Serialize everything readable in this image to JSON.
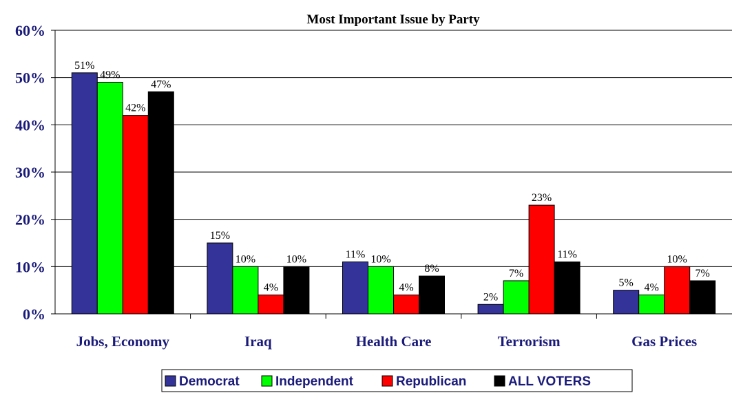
{
  "chart_data": {
    "type": "bar",
    "title": "Most Important Issue by Party",
    "xlabel": "",
    "ylabel": "",
    "categories": [
      "Jobs, Economy",
      "Iraq",
      "Health Care",
      "Terrorism",
      "Gas Prices"
    ],
    "series": [
      {
        "name": "Democrat",
        "color": "#333399",
        "values": [
          51,
          15,
          11,
          2,
          5
        ]
      },
      {
        "name": "Independent",
        "color": "#00ff00",
        "values": [
          49,
          10,
          10,
          7,
          4
        ]
      },
      {
        "name": "Republican",
        "color": "#ff0000",
        "values": [
          42,
          4,
          4,
          23,
          10
        ]
      },
      {
        "name": "ALL VOTERS",
        "color": "#000000",
        "values": [
          47,
          10,
          8,
          11,
          7
        ]
      }
    ],
    "ylim": [
      0,
      60
    ],
    "yticks": [
      "0%",
      "10%",
      "20%",
      "30%",
      "40%",
      "50%",
      "60%"
    ],
    "value_suffix": "%",
    "grid": true,
    "legend": "bottom"
  }
}
